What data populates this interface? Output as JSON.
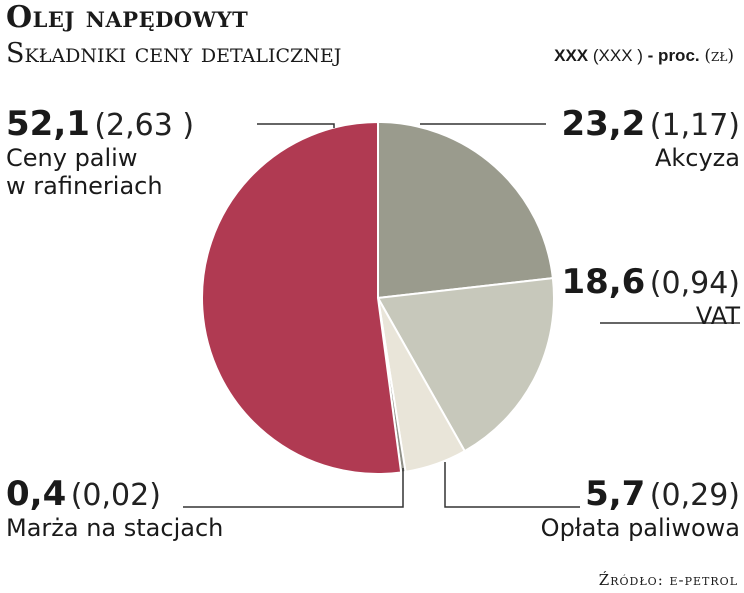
{
  "title": "Olej napędowyt",
  "subtitle": "Składniki ceny detalicznej",
  "legend": {
    "main": "XXX",
    "paren": "(XXX )",
    "unit": "- proc.",
    "unit2": "(zł)"
  },
  "source": "Źródło: e-petrol",
  "colors": {
    "rafinerie": "#b03a52",
    "akcyza": "#9a9b8d",
    "vat": "#c7c8bb",
    "oplata": "#e9e5d9",
    "marza": "#8f8f86"
  },
  "chart_data": {
    "type": "pie",
    "unit": "proc.",
    "slices": [
      {
        "label": "Akcyza",
        "value": 23.2,
        "amount": "(1,17)",
        "value_text": "23,2",
        "color": "#9a9b8d"
      },
      {
        "label": "VAT",
        "value": 18.6,
        "amount": "(0,94)",
        "value_text": "18,6",
        "color": "#c7c8bb"
      },
      {
        "label": "Opłata paliwowa",
        "value": 5.7,
        "amount": "(0,29)",
        "value_text": "5,7",
        "color": "#e9e5d9"
      },
      {
        "label": "Marża na stacjach",
        "value": 0.4,
        "amount": "(0,02)",
        "value_text": "0,4",
        "color": "#8f8f86"
      },
      {
        "label": "Ceny paliw w rafineriach",
        "value": 52.1,
        "amount": "(2,63 )",
        "value_text": "52,1",
        "color": "#b03a52"
      }
    ],
    "labels": {
      "rafinerie": {
        "line1": "Ceny paliw",
        "line2": "w rafineriach"
      }
    }
  }
}
